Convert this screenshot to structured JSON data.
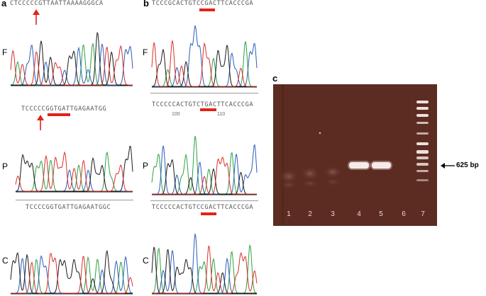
{
  "panels": {
    "a": {
      "letter": "a",
      "seq_top": "CTCCCCCGTTAATTAAAAGGGCA",
      "seq_mid": "TCCCCCGGTGATTGAGAATGG",
      "seq_bottom": "TCCCCGGTGATTGAGAATGGC",
      "rows": [
        "F",
        "P",
        "C"
      ]
    },
    "b": {
      "letter": "b",
      "seq_top": "TCCCGCACTGTCCGACTTCACCCGA",
      "seq_mid": "TCCCCCACTGTCTGACTTCACCCGA",
      "seq_bottom": "TCCCCCACTGTCCGACTTCACCCGA",
      "pos_100": "100",
      "pos_110": "110",
      "rows": [
        "F",
        "P",
        "C"
      ]
    },
    "c": {
      "letter": "c",
      "lanes": [
        "1",
        "2",
        "3",
        "4",
        "5",
        "6",
        "7"
      ],
      "band_label": "625 bp"
    }
  },
  "colors": {
    "A": "#2ea043",
    "C": "#2a5dbd",
    "G": "#1a1a1a",
    "T": "#d9302a",
    "highlight": "#e3221b",
    "gel": "#5a2b22"
  }
}
